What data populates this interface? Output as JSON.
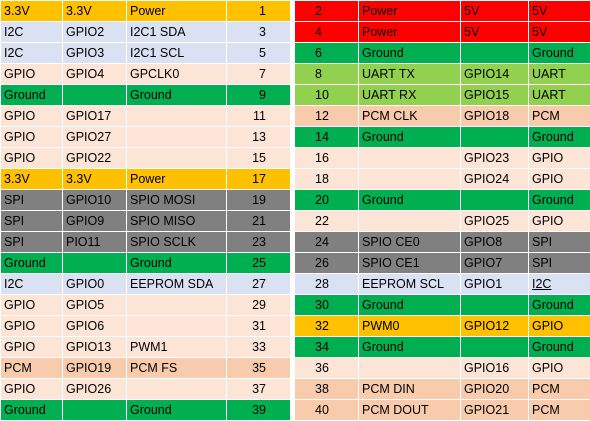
{
  "colors": {
    "power33": "#ffc000",
    "power5": "#ff0000",
    "ground": "#00b050",
    "i2c": "#d9e1f2",
    "uart": "#92d050",
    "spi": "#808080",
    "pcm": "#f8cbad",
    "gpio": "#fce4d6",
    "eeprom": "#d9e1f2",
    "pwm": "#ffc000"
  },
  "rows": [
    {
      "l": {
        "a": "3.3V",
        "b": "3.3V",
        "c": "Power",
        "pin": "1",
        "color": "#ffc000"
      },
      "r": {
        "pin": "2",
        "c": "Power",
        "b": "5V",
        "a": "5V",
        "color": "#ff0000"
      }
    },
    {
      "l": {
        "a": "I2C",
        "b": "GPIO2",
        "c": "I2C1 SDA",
        "pin": "3",
        "color": "#d9e1f2"
      },
      "r": {
        "pin": "4",
        "c": "Power",
        "b": "5V",
        "a": "5V",
        "color": "#ff0000"
      }
    },
    {
      "l": {
        "a": "I2C",
        "b": "GPIO3",
        "c": "I2C1 SCL",
        "pin": "5",
        "color": "#d9e1f2"
      },
      "r": {
        "pin": "6",
        "c": "Ground",
        "b": "",
        "a": "Ground",
        "color": "#00b050"
      }
    },
    {
      "l": {
        "a": "GPIO",
        "b": "GPIO4",
        "c": "GPCLK0",
        "pin": "7",
        "color": "#fce4d6"
      },
      "r": {
        "pin": "8",
        "c": "UART TX",
        "b": "GPIO14",
        "a": "UART",
        "color": "#92d050"
      }
    },
    {
      "l": {
        "a": "Ground",
        "b": "",
        "c": "Ground",
        "pin": "9",
        "color": "#00b050"
      },
      "r": {
        "pin": "10",
        "c": "UART RX",
        "b": "GPIO15",
        "a": "UART",
        "color": "#92d050"
      }
    },
    {
      "l": {
        "a": "GPIO",
        "b": "GPIO17",
        "c": "",
        "pin": "11",
        "color": "#fce4d6"
      },
      "r": {
        "pin": "12",
        "c": "PCM CLK",
        "b": "GPIO18",
        "a": "PCM",
        "color": "#f8cbad"
      }
    },
    {
      "l": {
        "a": "GPIO",
        "b": "GPIO27",
        "c": "",
        "pin": "13",
        "color": "#fce4d6"
      },
      "r": {
        "pin": "14",
        "c": "Ground",
        "b": "",
        "a": "Ground",
        "color": "#00b050"
      }
    },
    {
      "l": {
        "a": "GPIO",
        "b": "GPIO22",
        "c": "",
        "pin": "15",
        "color": "#fce4d6"
      },
      "r": {
        "pin": "16",
        "c": "",
        "b": "GPIO23",
        "a": "GPIO",
        "color": "#fce4d6"
      }
    },
    {
      "l": {
        "a": "3.3V",
        "b": "3.3V",
        "c": "Power",
        "pin": "17",
        "color": "#ffc000"
      },
      "r": {
        "pin": "18",
        "c": "",
        "b": "GPIO24",
        "a": "GPIO",
        "color": "#fce4d6"
      }
    },
    {
      "l": {
        "a": "SPI",
        "b": "GPIO10",
        "c": "SPIO MOSI",
        "pin": "19",
        "color": "#808080"
      },
      "r": {
        "pin": "20",
        "c": "Ground",
        "b": "",
        "a": "Ground",
        "color": "#00b050"
      }
    },
    {
      "l": {
        "a": "SPI",
        "b": "GPIO9",
        "c": "SPIO MISO",
        "pin": "21",
        "color": "#808080"
      },
      "r": {
        "pin": "22",
        "c": "",
        "b": "GPIO25",
        "a": "GPIO",
        "color": "#fce4d6"
      }
    },
    {
      "l": {
        "a": "SPI",
        "b": "PIO11",
        "c": "SPIO SCLK",
        "pin": "23",
        "color": "#808080"
      },
      "r": {
        "pin": "24",
        "c": "SPIO CE0",
        "b": "GPIO8",
        "a": "SPI",
        "color": "#808080"
      }
    },
    {
      "l": {
        "a": "Ground",
        "b": "",
        "c": "Ground",
        "pin": "25",
        "color": "#00b050"
      },
      "r": {
        "pin": "26",
        "c": "SPIO CE1",
        "b": "GPIO7",
        "a": "SPI",
        "color": "#808080"
      }
    },
    {
      "l": {
        "a": "I2C",
        "b": "GPIO0",
        "c": "EEPROM SDA",
        "pin": "27",
        "color": "#d9e1f2"
      },
      "r": {
        "pin": "28",
        "c": "EEPROM SCL",
        "b": "GPIO1",
        "a": "I2C",
        "color": "#d9e1f2",
        "underline": true
      }
    },
    {
      "l": {
        "a": "GPIO",
        "b": "GPIO5",
        "c": "",
        "pin": "29",
        "color": "#fce4d6"
      },
      "r": {
        "pin": "30",
        "c": "Ground",
        "b": "",
        "a": "Ground",
        "color": "#00b050"
      }
    },
    {
      "l": {
        "a": "GPIO",
        "b": "GPIO6",
        "c": "",
        "pin": "31",
        "color": "#fce4d6"
      },
      "r": {
        "pin": "32",
        "c": "PWM0",
        "b": "GPIO12",
        "a": "GPIO",
        "color": "#ffc000"
      }
    },
    {
      "l": {
        "a": "GPIO",
        "b": "GPIO13",
        "c": "PWM1",
        "pin": "33",
        "color": "#fce4d6"
      },
      "r": {
        "pin": "34",
        "c": "Ground",
        "b": "",
        "a": "Ground",
        "color": "#00b050"
      }
    },
    {
      "l": {
        "a": "PCM",
        "b": "GPIO19",
        "c": "PCM FS",
        "pin": "35",
        "color": "#f8cbad"
      },
      "r": {
        "pin": "36",
        "c": "",
        "b": "GPIO16",
        "a": "GPIO",
        "color": "#fce4d6"
      }
    },
    {
      "l": {
        "a": "GPIO",
        "b": "GPIO26",
        "c": "",
        "pin": "37",
        "color": "#fce4d6"
      },
      "r": {
        "pin": "38",
        "c": "PCM DIN",
        "b": "GPIO20",
        "a": "PCM",
        "color": "#f8cbad"
      }
    },
    {
      "l": {
        "a": "Ground",
        "b": "",
        "c": "Ground",
        "pin": "39",
        "color": "#00b050"
      },
      "r": {
        "pin": "40",
        "c": "PCM DOUT",
        "b": "GPIO21",
        "a": "PCM",
        "color": "#f8cbad"
      }
    }
  ]
}
